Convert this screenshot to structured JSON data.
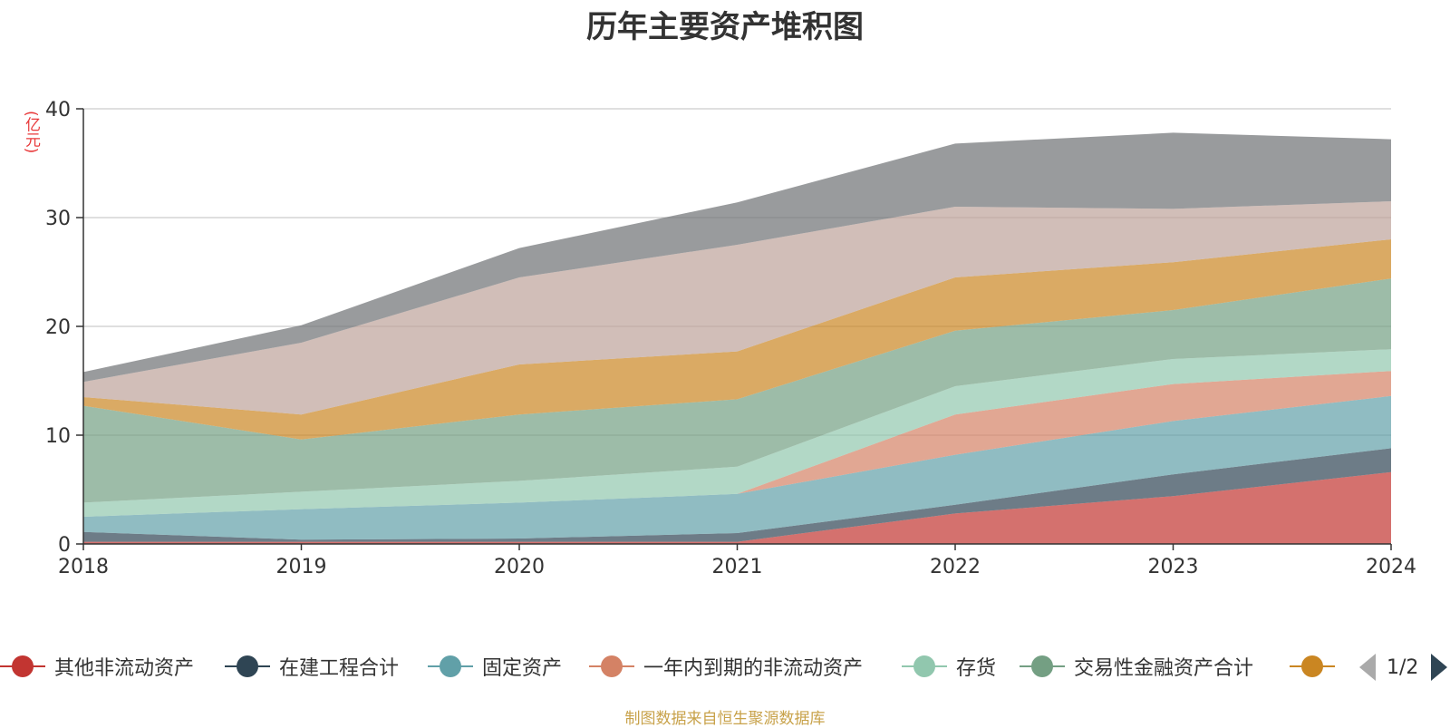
{
  "chart_data": {
    "type": "area",
    "stacked": true,
    "title": "历年主要资产堆积图",
    "unit_label": "(亿元)",
    "x": [
      "2018",
      "2019",
      "2020",
      "2021",
      "2022",
      "2023",
      "2024"
    ],
    "ylim": [
      0,
      40
    ],
    "yticks": [
      0,
      10,
      20,
      30,
      40
    ],
    "grid": true,
    "legend_position": "bottom",
    "series": [
      {
        "name": "其他非流动资产",
        "color": "#c23531",
        "values": [
          0.2,
          0.2,
          0.2,
          0.2,
          2.8,
          4.4,
          6.6
        ]
      },
      {
        "name": "在建工程合计",
        "color": "#2f4554",
        "values": [
          0.9,
          0.2,
          0.3,
          0.8,
          0.8,
          2.0,
          2.2
        ]
      },
      {
        "name": "固定资产",
        "color": "#61a0a8",
        "values": [
          1.4,
          2.8,
          3.3,
          3.6,
          4.6,
          4.9,
          4.8
        ]
      },
      {
        "name": "一年内到期的非流动资产",
        "color": "#d48265",
        "values": [
          0,
          0,
          0,
          0,
          3.7,
          3.4,
          2.3
        ]
      },
      {
        "name": "存货",
        "color": "#91c7ae",
        "values": [
          1.3,
          1.6,
          2.0,
          2.5,
          2.6,
          2.3,
          2.0
        ]
      },
      {
        "name": "交易性金融资产合计",
        "color": "#749f83",
        "values": [
          8.9,
          4.8,
          6.1,
          6.2,
          5.1,
          4.5,
          6.5
        ]
      },
      {
        "name": "",
        "color": "#ca8622",
        "values": [
          0.8,
          2.3,
          4.6,
          4.4,
          4.9,
          4.4,
          3.6
        ]
      },
      {
        "name": "",
        "color": "#bda29a",
        "values": [
          1.4,
          6.6,
          8.0,
          9.8,
          6.5,
          4.9,
          3.5
        ]
      },
      {
        "name": "",
        "color": "#6e7074",
        "values": [
          0.9,
          1.6,
          2.7,
          3.9,
          5.8,
          7.0,
          5.7
        ]
      }
    ]
  },
  "legend": {
    "items": [
      {
        "label": "其他非流动资产",
        "color": "#c23531"
      },
      {
        "label": "在建工程合计",
        "color": "#2f4554"
      },
      {
        "label": "固定资产",
        "color": "#61a0a8"
      },
      {
        "label": "一年内到期的非流动资产",
        "color": "#d48265"
      },
      {
        "label": "存货",
        "color": "#91c7ae"
      },
      {
        "label": "交易性金融资产合计",
        "color": "#749f83"
      },
      {
        "label": "",
        "color": "#ca8622"
      }
    ],
    "page_indicator": "1/2"
  },
  "source_note": "制图数据来自恒生聚源数据库"
}
